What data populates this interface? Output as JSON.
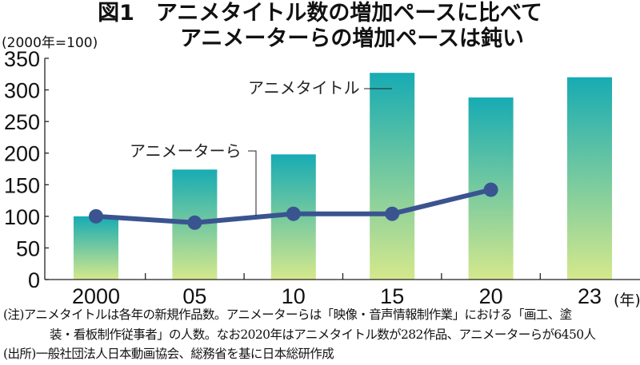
{
  "chart_data": {
    "type": "bar",
    "title": "図1　アニメタイトル数の増加ペースに比べて",
    "subtitle": "アニメーターらの増加ペースは鈍い",
    "ylabel": "(2000年=100)",
    "xlabel": "(年)",
    "ylim": [
      0,
      350
    ],
    "yticks": [
      "0",
      "50",
      "100",
      "150",
      "200",
      "250",
      "300",
      "350"
    ],
    "categories": [
      "2000",
      "05",
      "10",
      "15",
      "20",
      "23"
    ],
    "series": [
      {
        "name": "アニメタイトル",
        "type": "bar",
        "values": [
          100,
          174,
          198,
          327,
          288,
          320
        ]
      },
      {
        "name": "アニメーターら",
        "type": "line",
        "values": [
          100,
          90,
          104,
          104,
          142,
          null
        ]
      }
    ],
    "colors": {
      "bar_top": "#17abb3",
      "bar_bottom": "#d5e88c",
      "line": "#3a5490"
    }
  },
  "notes": [
    "(注)アニメタイトルは各年の新規作品数。アニメーターらは「映像・音声情報制作業」における「画工、塗",
    "装・看板制作従事者」の人数。なお2020年はアニメタイトル数が282作品、アニメーターらが6450人",
    "(出所)一般社団法人日本動画協会、総務省を基に日本総研作成"
  ]
}
